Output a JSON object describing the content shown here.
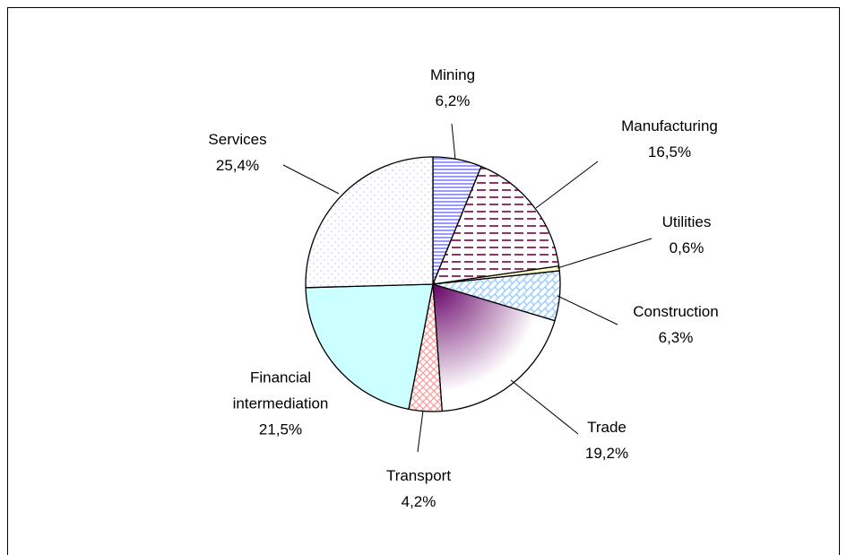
{
  "chart_data": {
    "type": "pie",
    "categories": [
      "Mining",
      "Manufacturing",
      "Utilities",
      "Construction",
      "Trade",
      "Transport",
      "Financial intermediation",
      "Services"
    ],
    "values": [
      6.2,
      16.5,
      0.6,
      6.3,
      19.2,
      4.2,
      21.5,
      25.4
    ],
    "value_labels": [
      "6,2%",
      "16,5%",
      "0,6%",
      "6,3%",
      "19,2%",
      "4,2%",
      "21,5%",
      "25,4%"
    ],
    "colors": [
      "#9999ff",
      "#993366",
      "#ffffcc",
      "#99ccff",
      "#660066",
      "#ff9999",
      "#ccffff",
      "#ccccff"
    ]
  }
}
